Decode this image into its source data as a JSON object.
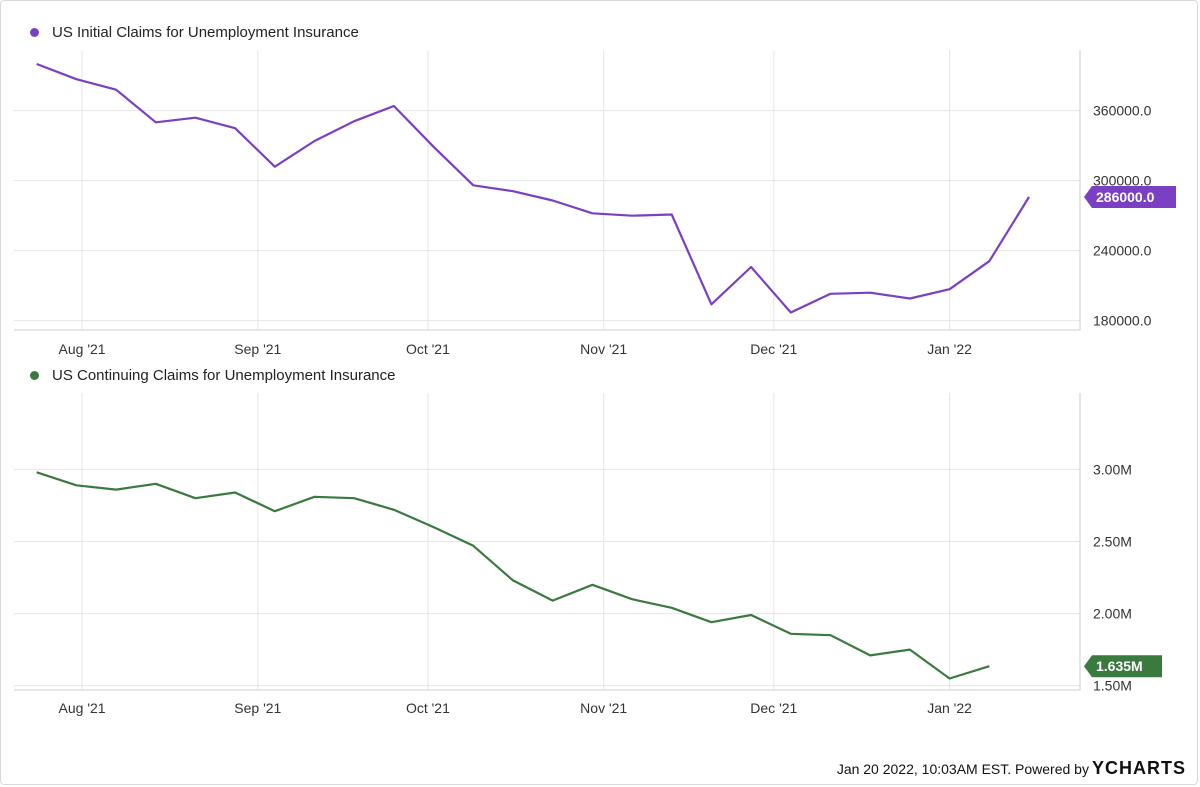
{
  "chart_data": [
    {
      "type": "line",
      "series": [
        {
          "name": "US Initial Claims for Unemployment Insurance",
          "color": "#7b3fc4",
          "x": [
            "2021-07-24",
            "2021-07-31",
            "2021-08-07",
            "2021-08-14",
            "2021-08-21",
            "2021-08-28",
            "2021-09-04",
            "2021-09-11",
            "2021-09-18",
            "2021-09-25",
            "2021-10-02",
            "2021-10-09",
            "2021-10-16",
            "2021-10-23",
            "2021-10-30",
            "2021-11-06",
            "2021-11-13",
            "2021-11-20",
            "2021-11-27",
            "2021-12-04",
            "2021-12-11",
            "2021-12-18",
            "2021-12-25",
            "2022-01-01",
            "2022-01-08",
            "2022-01-15"
          ],
          "values": [
            400000,
            387000,
            378000,
            350000,
            354000,
            345000,
            312000,
            334000,
            351000,
            364000,
            329000,
            296000,
            291000,
            283000,
            272000,
            270000,
            271000,
            194000,
            226000,
            187000,
            203000,
            204000,
            199000,
            207000,
            231000,
            286000
          ]
        }
      ],
      "ylim": [
        172000,
        412000
      ],
      "yticks": [
        "360000.0",
        "300000.0",
        "240000.0",
        "180000.0"
      ],
      "ytick_values": [
        360000,
        300000,
        240000,
        180000
      ],
      "xticks": [
        "Aug '21",
        "Sep '21",
        "Oct '21",
        "Nov '21",
        "Dec '21",
        "Jan '22"
      ],
      "xtick_dates": [
        "2021-08-01",
        "2021-09-01",
        "2021-10-01",
        "2021-11-01",
        "2021-12-01",
        "2022-01-01"
      ],
      "last_value_label": "286000.0",
      "grid": true,
      "legend_position": "top-left"
    },
    {
      "type": "line",
      "series": [
        {
          "name": "US Continuing Claims for Unemployment Insurance",
          "color": "#3a7a3f",
          "x": [
            "2021-07-24",
            "2021-07-31",
            "2021-08-07",
            "2021-08-14",
            "2021-08-21",
            "2021-08-28",
            "2021-09-04",
            "2021-09-11",
            "2021-09-18",
            "2021-09-25",
            "2021-10-02",
            "2021-10-09",
            "2021-10-16",
            "2021-10-23",
            "2021-10-30",
            "2021-11-06",
            "2021-11-13",
            "2021-11-20",
            "2021-11-27",
            "2021-12-04",
            "2021-12-11",
            "2021-12-18",
            "2021-12-25",
            "2022-01-01",
            "2022-01-08"
          ],
          "values": [
            2.98,
            2.89,
            2.86,
            2.9,
            2.8,
            2.84,
            2.71,
            2.81,
            2.8,
            2.72,
            2.6,
            2.47,
            2.23,
            2.09,
            2.2,
            2.1,
            2.04,
            1.94,
            1.99,
            1.86,
            1.85,
            1.71,
            1.75,
            1.55,
            1.635
          ]
        }
      ],
      "ylim": [
        1.47,
        3.53
      ],
      "yticks": [
        "3.00M",
        "2.50M",
        "2.00M",
        "1.50M"
      ],
      "ytick_values": [
        3.0,
        2.5,
        2.0,
        1.5
      ],
      "xticks": [
        "Aug '21",
        "Sep '21",
        "Oct '21",
        "Nov '21",
        "Dec '21",
        "Jan '22"
      ],
      "xtick_dates": [
        "2021-08-01",
        "2021-09-01",
        "2021-10-01",
        "2021-11-01",
        "2021-12-01",
        "2022-01-01"
      ],
      "last_value_label": "1.635M",
      "grid": true,
      "legend_position": "top-left"
    }
  ],
  "legend": {
    "initial": "US Initial Claims for Unemployment Insurance",
    "continuing": "US Continuing Claims for Unemployment Insurance"
  },
  "footer": {
    "timestamp": "Jan 20 2022, 10:03AM EST. Powered by",
    "brand_y": "Y",
    "brand_rest": "CHARTS"
  },
  "colors": {
    "initial": "#7b3fc4",
    "continuing": "#3a7a3f",
    "grid": "#e6e6e6"
  }
}
